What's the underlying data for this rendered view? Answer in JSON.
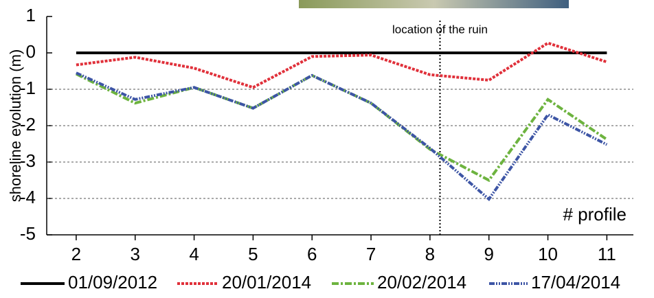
{
  "chart_data": {
    "type": "line",
    "y_label": "shoreline evolution (m)",
    "x_label": "# profile",
    "x": [
      2,
      3,
      4,
      5,
      6,
      7,
      8,
      9,
      10,
      11
    ],
    "xlim": [
      1.5,
      11.45
    ],
    "xticks": [
      2,
      3,
      4,
      5,
      6,
      7,
      8,
      9,
      10,
      11
    ],
    "ylim": [
      -5,
      1
    ],
    "yticks": [
      1,
      0,
      -1,
      -2,
      -3,
      -4,
      -5
    ],
    "grid": true,
    "annotation": {
      "text": "location of the ruin",
      "x": 8.17
    },
    "series": [
      {
        "name": "01/09/2012",
        "color": "#000000",
        "values": [
          0,
          0,
          0,
          0,
          0,
          0,
          0,
          0,
          0,
          0
        ]
      },
      {
        "name": "20/01/2014",
        "color": "#e0303a",
        "values": [
          -0.33,
          -0.12,
          -0.42,
          -0.95,
          -0.1,
          -0.06,
          -0.6,
          -0.75,
          0.27,
          -0.25
        ]
      },
      {
        "name": "20/02/2014",
        "color": "#6db33f",
        "values": [
          -0.58,
          -1.38,
          -0.95,
          -1.52,
          -0.62,
          -1.38,
          -2.65,
          -3.5,
          -1.28,
          -2.38
        ]
      },
      {
        "name": "17/04/2014",
        "color": "#3d55a5",
        "values": [
          -0.55,
          -1.28,
          -0.95,
          -1.52,
          -0.62,
          -1.38,
          -2.62,
          -4.02,
          -1.7,
          -2.52
        ]
      }
    ]
  }
}
